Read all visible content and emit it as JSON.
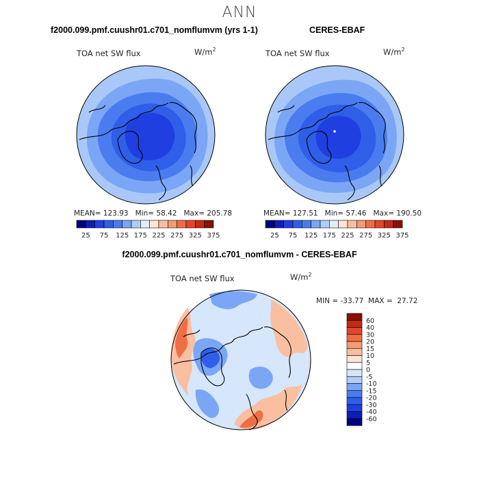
{
  "page_title": "ANN",
  "panels": {
    "model": {
      "header": "f2000.099.pmf.cuushr01.c701_nomflumvm (yrs 1-1)",
      "field_label": "TOA net SW flux",
      "units_base": "W/m",
      "units_exp": "2",
      "mean_label": "MEAN=",
      "mean": "123.93",
      "min_label": "Min=",
      "min": "58.42",
      "max_label": "Max=",
      "max": "205.78"
    },
    "obs": {
      "header": "CERES-EBAF",
      "field_label": "TOA net SW flux",
      "units_base": "W/m",
      "units_exp": "2",
      "mean_label": "MEAN=",
      "mean": "127.51",
      "min_label": "Min=",
      "min": "57.46",
      "max_label": "Max=",
      "max": "190.50"
    },
    "diff": {
      "header": "f2000.099.pmf.cuushr01.c701_nomflumvm - CERES-EBAF",
      "field_label": "TOA net SW flux",
      "units_base": "W/m",
      "units_exp": "2",
      "min_label": "MIN =",
      "min": "-33.77",
      "max_label": "MAX =",
      "max": "27.72"
    }
  },
  "colorbar_abs": {
    "ticks": [
      "25",
      "75",
      "125",
      "175",
      "225",
      "275",
      "325",
      "375"
    ],
    "colors": [
      "#000080",
      "#0a1fb8",
      "#1f3fe0",
      "#2f5fe8",
      "#4a7cf0",
      "#7aa6f5",
      "#b0cdfa",
      "#e2eefc",
      "#fde4d4",
      "#f9bfa0",
      "#f59a72",
      "#f06e46",
      "#e4452a",
      "#c32a12",
      "#8a0f05"
    ]
  },
  "colorbar_diff": {
    "ticks": [
      "60",
      "40",
      "30",
      "20",
      "15",
      "10",
      "5",
      "0",
      "-5",
      "-10",
      "-15",
      "-20",
      "-30",
      "-40",
      "-60"
    ],
    "colors": [
      "#8a0f05",
      "#c32a12",
      "#e4452a",
      "#f06e46",
      "#f59a72",
      "#f9bfa0",
      "#fde4d4",
      "#ffffff",
      "#d6e6fb",
      "#b0cdfa",
      "#7aa6f5",
      "#4a7cf0",
      "#2f5fe8",
      "#1f3fe0",
      "#0a1fb8",
      "#000080"
    ]
  },
  "map_colors": {
    "abs_outer": "#a9c8f7",
    "abs_ring1": "#7aa6f5",
    "abs_ring2": "#4a7cf0",
    "abs_ring3": "#2f5fe8",
    "abs_core": "#1f3fe0",
    "diff_base": "#d6e6fb",
    "diff_pos": "#f9bfa0",
    "diff_pos_strong": "#f06e46",
    "diff_neg": "#7aa6f5",
    "diff_neg_strong": "#2f5fe8"
  }
}
